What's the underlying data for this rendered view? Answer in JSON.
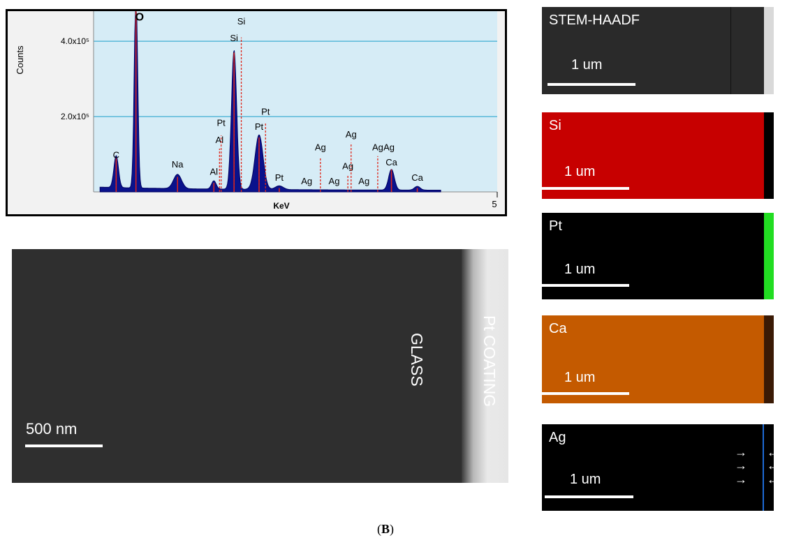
{
  "chart_data": {
    "type": "line",
    "ylabel": "Counts",
    "xlabel": "KeV",
    "xlim": [
      0,
      5
    ],
    "ylim": [
      0,
      480000
    ],
    "y_ticks": [
      "4.0x10⁵",
      "2.0x10⁵"
    ],
    "y_tick_values": [
      400000,
      200000
    ],
    "x_tick_labels": [
      "5"
    ],
    "x_tick_values": [
      5
    ],
    "grid": true,
    "spectrum_peaks": [
      {
        "x": 0.28,
        "y": 85000,
        "w": 0.04
      },
      {
        "x": 0.525,
        "y": 520000,
        "w": 0.03
      },
      {
        "x": 1.04,
        "y": 38000,
        "w": 0.07
      },
      {
        "x": 1.49,
        "y": 22000,
        "w": 0.04
      },
      {
        "x": 1.74,
        "y": 370000,
        "w": 0.045
      },
      {
        "x": 2.05,
        "y": 145000,
        "w": 0.07
      },
      {
        "x": 2.3,
        "y": 10000,
        "w": 0.07
      },
      {
        "x": 3.69,
        "y": 55000,
        "w": 0.05
      },
      {
        "x": 4.01,
        "y": 10000,
        "w": 0.05
      }
    ],
    "peak_labels": [
      {
        "text": "C",
        "x": 0.28,
        "y": 90000,
        "line": 90000
      },
      {
        "text": "O",
        "x": 0.57,
        "y": 455000,
        "line": 0,
        "bold": true
      },
      {
        "text": "Na",
        "x": 1.04,
        "y": 65000,
        "line": 40000
      },
      {
        "text": "Al",
        "x": 1.49,
        "y": 45000,
        "line": 25000
      },
      {
        "text": "Al",
        "x": 1.56,
        "y": 130000,
        "line": 115000
      },
      {
        "text": "Pt",
        "x": 1.58,
        "y": 175000,
        "line": 150000
      },
      {
        "text": "Si",
        "x": 1.74,
        "y": 400000,
        "line": 360000
      },
      {
        "text": "Si",
        "x": 1.83,
        "y": 445000,
        "line": 410000
      },
      {
        "text": "Pt",
        "x": 2.05,
        "y": 165000,
        "line": 140000
      },
      {
        "text": "Pt",
        "x": 2.13,
        "y": 205000,
        "line": 185000
      },
      {
        "text": "Pt",
        "x": 2.3,
        "y": 30000,
        "line": 10000
      },
      {
        "text": "Ag",
        "x": 2.64,
        "y": 20000,
        "line": 0
      },
      {
        "text": "Ag",
        "x": 2.81,
        "y": 110000,
        "line": 90000
      },
      {
        "text": "Ag",
        "x": 2.98,
        "y": 20000,
        "line": 0
      },
      {
        "text": "Ag",
        "x": 3.15,
        "y": 60000,
        "line": 45000
      },
      {
        "text": "Ag",
        "x": 3.19,
        "y": 145000,
        "line": 130000
      },
      {
        "text": "Ag",
        "x": 3.35,
        "y": 20000,
        "line": 0
      },
      {
        "text": "Ag",
        "x": 3.52,
        "y": 110000,
        "line": 95000
      },
      {
        "text": "Ag",
        "x": 3.66,
        "y": 110000,
        "line": 0
      },
      {
        "text": "Ca",
        "x": 3.69,
        "y": 70000,
        "line": 60000
      },
      {
        "text": "Ca",
        "x": 4.01,
        "y": 30000,
        "line": 10000
      }
    ]
  },
  "tem_image": {
    "scale_label": "500 nm",
    "glass_label": "GLASS",
    "coating_label": "Pt COATING"
  },
  "maps": [
    {
      "name": "STEM-HAADF",
      "scale_label": "1 um"
    },
    {
      "name": "Si",
      "scale_label": "1 um"
    },
    {
      "name": "Pt",
      "scale_label": "1 um"
    },
    {
      "name": "Ca",
      "scale_label": "1 um"
    },
    {
      "name": "Ag",
      "scale_label": "1 um"
    }
  ],
  "arrows": {
    "right": "→",
    "left": "←"
  },
  "caption": {
    "prefix": "(",
    "letter": "B",
    "suffix": ")"
  }
}
